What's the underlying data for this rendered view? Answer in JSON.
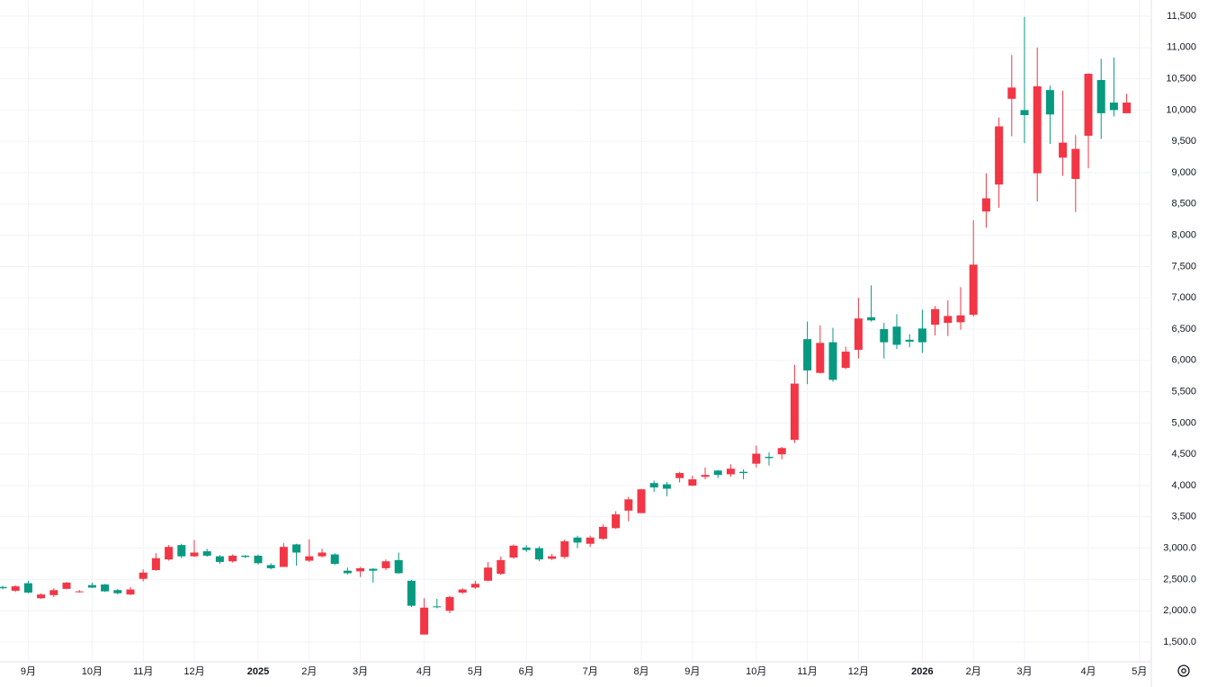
{
  "chart_data": {
    "type": "candlestick",
    "categories": [
      null,
      null,
      "9月",
      null,
      null,
      null,
      null,
      "10月",
      null,
      null,
      null,
      "11月",
      null,
      null,
      null,
      "12月",
      null,
      null,
      null,
      null,
      "2025",
      null,
      null,
      null,
      "2月",
      null,
      null,
      null,
      "3月",
      null,
      null,
      null,
      null,
      "4月",
      null,
      null,
      null,
      "5月",
      null,
      null,
      null,
      "6月",
      null,
      null,
      null,
      null,
      "7月",
      null,
      null,
      null,
      "8月",
      null,
      null,
      null,
      "9月",
      null,
      null,
      null,
      null,
      "10月",
      null,
      null,
      null,
      "11月",
      null,
      null,
      null,
      "12月",
      null,
      null,
      null,
      null,
      "2026",
      null,
      null,
      null,
      "2月",
      null,
      null,
      null,
      "3月",
      null,
      null,
      null,
      null,
      "4月",
      null,
      null,
      null,
      "5月"
    ],
    "open": [
      2380,
      2320,
      2440,
      2200,
      2250,
      2350,
      2300,
      2410,
      2420,
      2330,
      2260,
      2510,
      2650,
      2820,
      3050,
      2870,
      2950,
      2870,
      2790,
      2880,
      2880,
      2730,
      2700,
      3060,
      2800,
      2870,
      2900,
      2640,
      2630,
      2670,
      2680,
      2810,
      2480,
      1620,
      2070,
      2000,
      2290,
      2370,
      2480,
      2590,
      2850,
      3010,
      3000,
      2830,
      2860,
      3170,
      3070,
      3150,
      3320,
      3600,
      3560,
      4040,
      4020,
      4120,
      4000,
      4140,
      4240,
      4180,
      4220,
      4350,
      4460,
      4500,
      4730,
      6340,
      5800,
      6290,
      5880,
      6170,
      6690,
      6500,
      6540,
      6330,
      6510,
      6570,
      6600,
      6610,
      6730,
      8380,
      8810,
      10180,
      10000,
      8990,
      10320,
      9240,
      8900,
      9590,
      10480,
      10120,
      9950,
      null
    ],
    "high": [
      2400,
      2410,
      2480,
      2280,
      2360,
      2460,
      2330,
      2450,
      2430,
      2350,
      2380,
      2660,
      2920,
      3050,
      3070,
      3130,
      2990,
      2890,
      2900,
      2890,
      2900,
      2760,
      3080,
      3070,
      3140,
      2990,
      2920,
      2690,
      2700,
      2680,
      2820,
      2930,
      2490,
      2200,
      2190,
      2240,
      2360,
      2480,
      2780,
      2870,
      3060,
      3050,
      3030,
      2910,
      3140,
      3200,
      3200,
      3380,
      3590,
      3820,
      3950,
      4080,
      4060,
      4220,
      4160,
      4290,
      4250,
      4340,
      4260,
      4640,
      4530,
      4620,
      5930,
      6620,
      6560,
      6520,
      6220,
      7000,
      7200,
      6600,
      6740,
      6420,
      6810,
      6870,
      6960,
      7170,
      8240,
      8990,
      9880,
      10880,
      11490,
      11000,
      10390,
      10310,
      9600,
      10590,
      10820,
      10840,
      10260,
      null
    ],
    "low": [
      2340,
      2300,
      2280,
      2190,
      2220,
      2340,
      2290,
      2360,
      2300,
      2260,
      2250,
      2470,
      2640,
      2800,
      2840,
      2860,
      2860,
      2750,
      2770,
      2840,
      2740,
      2660,
      2700,
      2720,
      2780,
      2850,
      2730,
      2580,
      2540,
      2450,
      2650,
      2590,
      2060,
      1620,
      2040,
      1960,
      2270,
      2350,
      2470,
      2570,
      2830,
      2940,
      2790,
      2810,
      2830,
      3000,
      3020,
      3130,
      3310,
      3430,
      3560,
      3900,
      3830,
      4050,
      3990,
      4100,
      4120,
      4140,
      4100,
      4290,
      4320,
      4420,
      4680,
      5620,
      5790,
      5660,
      5860,
      6030,
      6620,
      6030,
      6180,
      6210,
      6120,
      6400,
      6390,
      6490,
      6700,
      8120,
      8440,
      9580,
      9470,
      8540,
      9460,
      8950,
      8370,
      9070,
      9540,
      9900,
      9950,
      null
    ],
    "close": [
      2360,
      2390,
      2290,
      2260,
      2330,
      2450,
      2310,
      2370,
      2310,
      2280,
      2340,
      2610,
      2840,
      3020,
      2870,
      2930,
      2880,
      2780,
      2880,
      2860,
      2760,
      2680,
      3020,
      2930,
      2870,
      2930,
      2750,
      2600,
      2680,
      2640,
      2790,
      2600,
      2080,
      2050,
      2060,
      2220,
      2340,
      2430,
      2690,
      2810,
      3040,
      2970,
      2820,
      2870,
      3110,
      3090,
      3170,
      3340,
      3540,
      3780,
      3940,
      3970,
      3950,
      4200,
      4100,
      4170,
      4170,
      4270,
      4200,
      4510,
      4440,
      4600,
      5630,
      5840,
      6280,
      5690,
      6140,
      6670,
      6640,
      6290,
      6250,
      6300,
      6290,
      6820,
      6710,
      6720,
      7530,
      8590,
      9740,
      10360,
      9920,
      10380,
      9930,
      9480,
      9380,
      10580,
      9950,
      10000,
      10120,
      null
    ],
    "up_color": "#f23645",
    "down_color": "#089981",
    "ylim": [
      1184,
      11759
    ],
    "yticks": [
      {
        "value": 1500,
        "label": "1,500.0"
      },
      {
        "value": 2000,
        "label": "2,000.0"
      },
      {
        "value": 2500,
        "label": "2,500.0"
      },
      {
        "value": 3000,
        "label": "3,000.0"
      },
      {
        "value": 3500,
        "label": "3,500"
      },
      {
        "value": 4000,
        "label": "4,000"
      },
      {
        "value": 4500,
        "label": "4,500"
      },
      {
        "value": 5000,
        "label": "5,000"
      },
      {
        "value": 5500,
        "label": "5,500"
      },
      {
        "value": 6000,
        "label": "6,000"
      },
      {
        "value": 6500,
        "label": "6,500"
      },
      {
        "value": 7000,
        "label": "7,000"
      },
      {
        "value": 7500,
        "label": "7,500"
      },
      {
        "value": 8000,
        "label": "8,000"
      },
      {
        "value": 8500,
        "label": "8,500"
      },
      {
        "value": 9000,
        "label": "9,000"
      },
      {
        "value": 9500,
        "label": "9,500"
      },
      {
        "value": 10000,
        "label": "10,000"
      },
      {
        "value": 10500,
        "label": "10,500"
      },
      {
        "value": 11000,
        "label": "11,000"
      },
      {
        "value": 11500,
        "label": "11,500"
      }
    ],
    "grid": true
  }
}
